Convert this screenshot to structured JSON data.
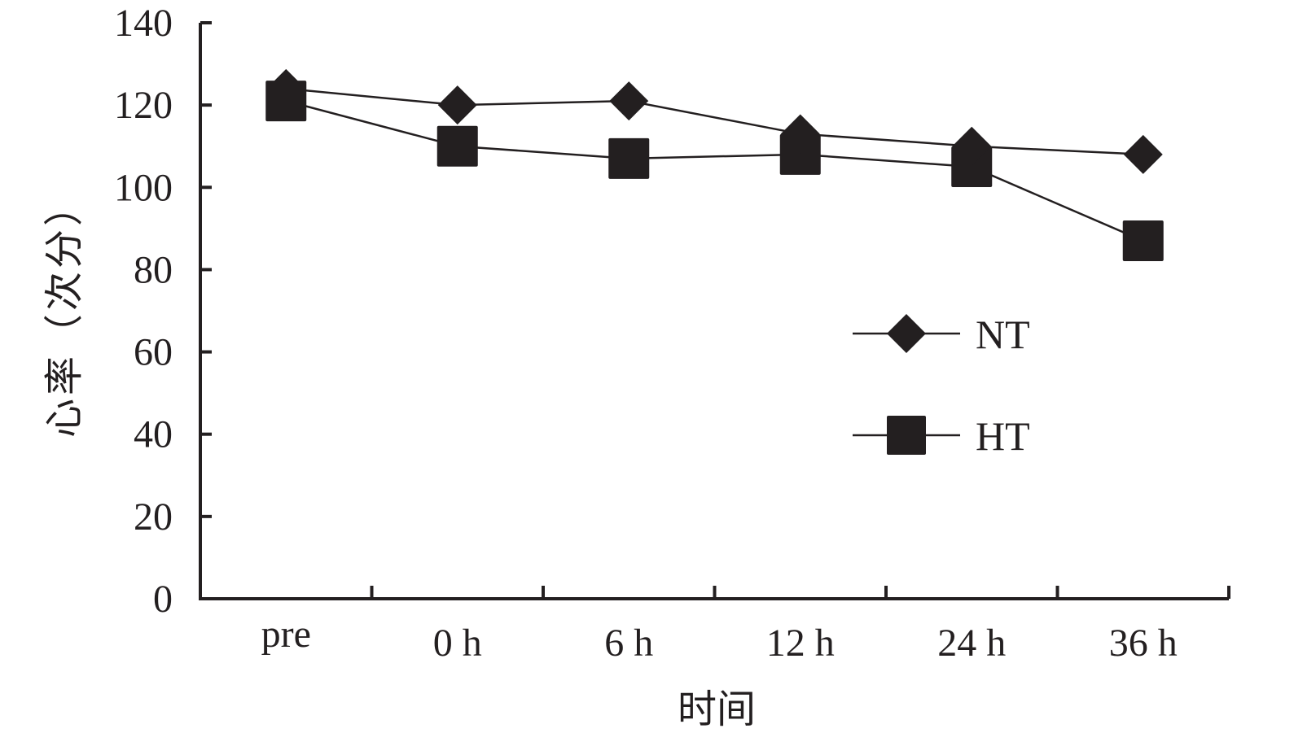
{
  "chart_data": {
    "type": "line",
    "categories": [
      "pre",
      "0 h",
      "6 h",
      "12 h",
      "24 h",
      "36 h"
    ],
    "series": [
      {
        "name": "NT",
        "marker": "diamond",
        "values": [
          124,
          120,
          121,
          113,
          110,
          108
        ]
      },
      {
        "name": "HT",
        "marker": "square",
        "values": [
          121,
          110,
          107,
          108,
          105,
          87
        ]
      }
    ],
    "xlabel": "时间",
    "ylabel": "心率（次分）",
    "ylim": [
      0,
      140
    ],
    "yticks": [
      0,
      20,
      40,
      60,
      80,
      100,
      120,
      140
    ],
    "grid": false,
    "legend_position": "right",
    "color": "#231f20"
  }
}
